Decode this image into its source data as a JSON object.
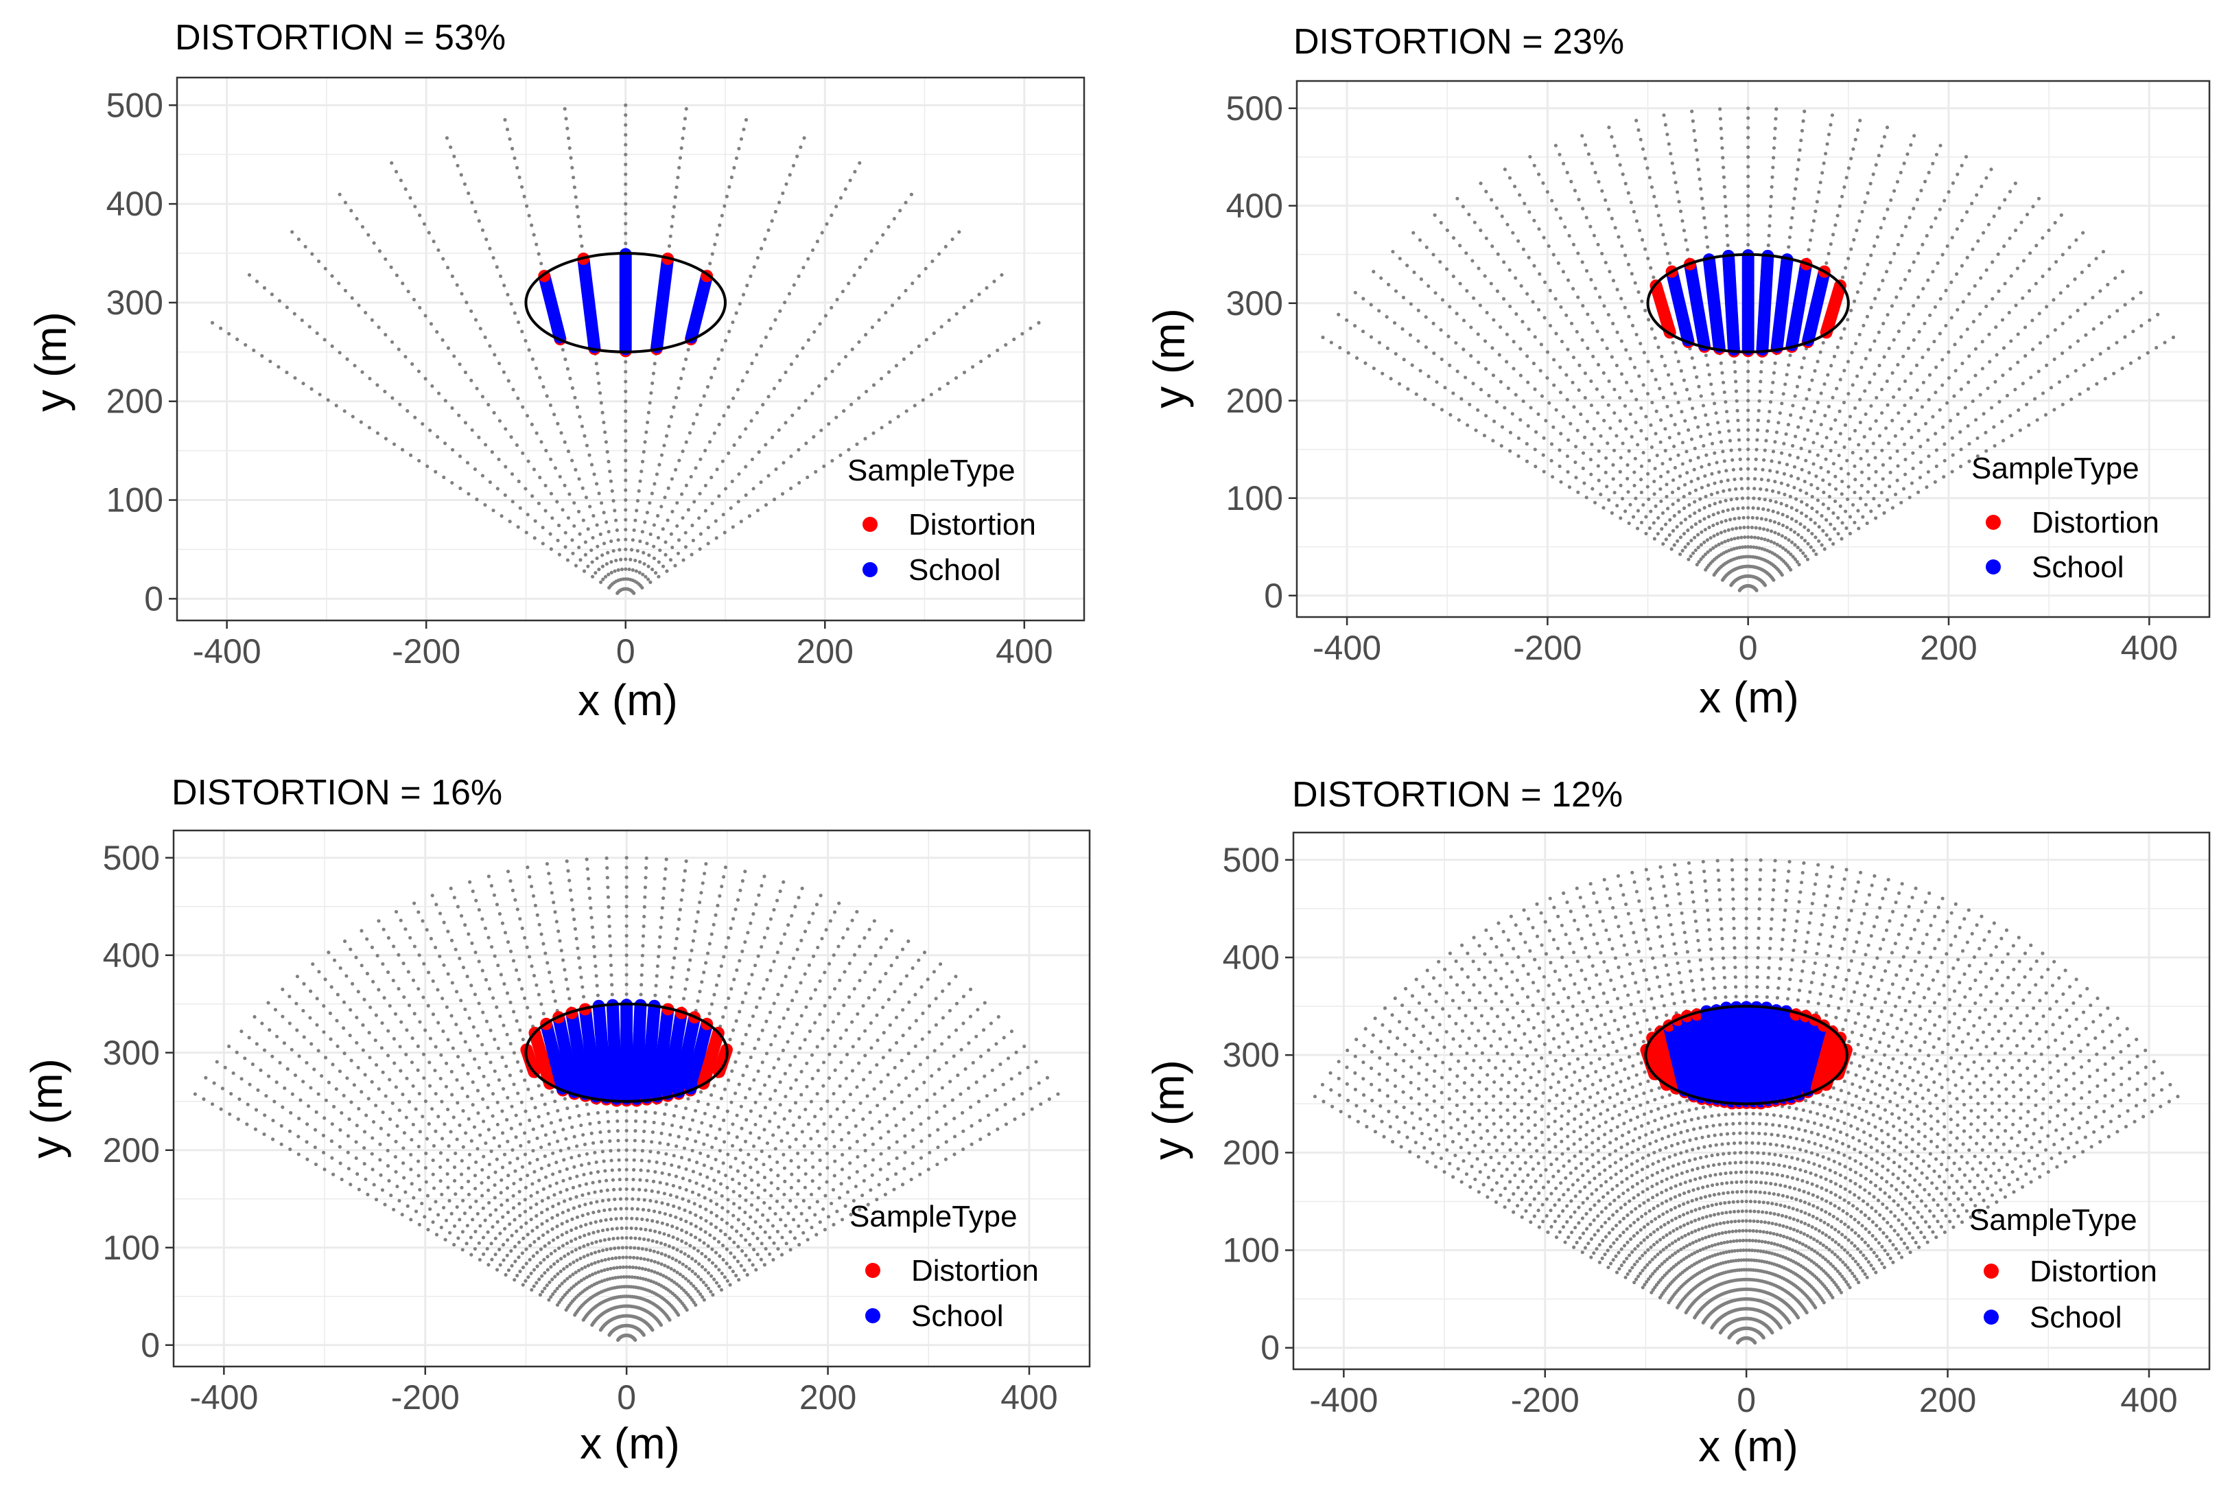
{
  "legend": {
    "title": "SampleType",
    "items": [
      {
        "label": "Distortion",
        "color": "#ff0000"
      },
      {
        "label": "School",
        "color": "#0000ff"
      }
    ]
  },
  "colors": {
    "beam_dots": "#808080",
    "ellipse": "#000000",
    "grid": "#ebebeb",
    "panel_border": "#333333"
  },
  "chart_data": [
    {
      "type": "scatter",
      "title": "DISTORTION = 53%",
      "xlabel": "x (m)",
      "ylabel": "y (m)",
      "xlim": [
        -450,
        460
      ],
      "ylim": [
        -22,
        528
      ],
      "xticks": [
        -400,
        -200,
        0,
        200,
        400
      ],
      "xtick_labels": [
        "-400",
        "-200",
        "0",
        "200",
        "400"
      ],
      "yticks": [
        0,
        100,
        200,
        300,
        400,
        500
      ],
      "ytick_labels": [
        "0",
        "100",
        "200",
        "300",
        "400",
        "500"
      ],
      "fan": {
        "beams": 17,
        "half_angle_deg": 56,
        "max_range_m": 500,
        "range_step_m": 10,
        "apex": [
          0,
          0
        ]
      },
      "ellipse": {
        "center": [
          0,
          300
        ],
        "semi_x": 100,
        "semi_y": 50
      },
      "legend_title": "SampleType",
      "legend_labels": [
        "Distortion",
        "School"
      ]
    },
    {
      "type": "scatter",
      "title": "DISTORTION = 23%",
      "xlabel": "x (m)",
      "ylabel": "y (m)",
      "xlim": [
        -450,
        460
      ],
      "ylim": [
        -22,
        528
      ],
      "xticks": [
        -400,
        -200,
        0,
        200,
        400
      ],
      "xtick_labels": [
        "-400",
        "-200",
        "0",
        "200",
        "400"
      ],
      "yticks": [
        0,
        100,
        200,
        300,
        400,
        500
      ],
      "ytick_labels": [
        "0",
        "100",
        "200",
        "300",
        "400",
        "500"
      ],
      "fan": {
        "beams": 37,
        "half_angle_deg": 58,
        "max_range_m": 500,
        "range_step_m": 10,
        "apex": [
          0,
          0
        ]
      },
      "ellipse": {
        "center": [
          0,
          300
        ],
        "semi_x": 100,
        "semi_y": 50
      },
      "legend_title": "SampleType",
      "legend_labels": [
        "Distortion",
        "School"
      ]
    },
    {
      "type": "scatter",
      "title": "DISTORTION = 16%",
      "xlabel": "x (m)",
      "ylabel": "y (m)",
      "xlim": [
        -450,
        460
      ],
      "ylim": [
        -22,
        528
      ],
      "xticks": [
        -400,
        -200,
        0,
        200,
        400
      ],
      "xtick_labels": [
        "-400",
        "-200",
        "0",
        "200",
        "400"
      ],
      "yticks": [
        0,
        100,
        200,
        300,
        400,
        500
      ],
      "ytick_labels": [
        "0",
        "100",
        "200",
        "300",
        "400",
        "500"
      ],
      "fan": {
        "beams": 53,
        "half_angle_deg": 59,
        "max_range_m": 500,
        "range_step_m": 10,
        "apex": [
          0,
          0
        ]
      },
      "ellipse": {
        "center": [
          0,
          300
        ],
        "semi_x": 100,
        "semi_y": 50
      },
      "legend_title": "SampleType",
      "legend_labels": [
        "Distortion",
        "School"
      ]
    },
    {
      "type": "scatter",
      "title": "DISTORTION = 12%",
      "xlabel": "x (m)",
      "ylabel": "y (m)",
      "xlim": [
        -450,
        460
      ],
      "ylim": [
        -22,
        528
      ],
      "xticks": [
        -400,
        -200,
        0,
        200,
        400
      ],
      "xtick_labels": [
        "-400",
        "-200",
        "0",
        "200",
        "400"
      ],
      "yticks": [
        0,
        100,
        200,
        300,
        400,
        500
      ],
      "ytick_labels": [
        "0",
        "100",
        "200",
        "300",
        "400",
        "500"
      ],
      "fan": {
        "beams": 73,
        "half_angle_deg": 59,
        "max_range_m": 500,
        "range_step_m": 10,
        "apex": [
          0,
          0
        ]
      },
      "ellipse": {
        "center": [
          0,
          300
        ],
        "semi_x": 100,
        "semi_y": 50
      },
      "legend_title": "SampleType",
      "legend_labels": [
        "Distortion",
        "School"
      ]
    }
  ]
}
